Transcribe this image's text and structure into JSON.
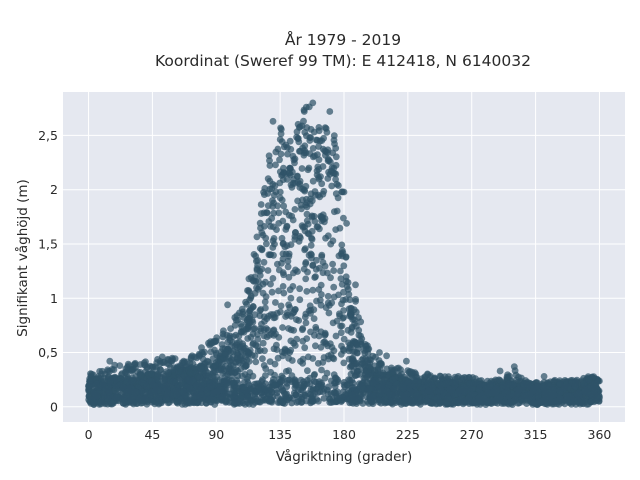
{
  "chart_data": {
    "type": "scatter",
    "title": "År 1979 - 2019",
    "subtitle": "Koordinat (Sweref 99 TM): E 412418, N 6140032",
    "xlabel": "Vågriktning (grader)",
    "ylabel": "Signifikant våghöjd (m)",
    "xlim": [
      -18,
      378
    ],
    "ylim": [
      -0.14,
      2.9
    ],
    "x_ticks": [
      0,
      45,
      90,
      135,
      180,
      225,
      270,
      315,
      360
    ],
    "x_tick_labels": [
      "0",
      "45",
      "90",
      "135",
      "180",
      "225",
      "270",
      "315",
      "360"
    ],
    "y_ticks": [
      0,
      0.5,
      1,
      1.5,
      2,
      2.5
    ],
    "y_tick_labels": [
      "0",
      "0,5",
      "1",
      "1,5",
      "2",
      "2,5"
    ],
    "grid": true,
    "legend": "none",
    "colors": {
      "marker": "#2f5368",
      "plot_bg": "#e5e8f0",
      "grid": "#ffffff",
      "text": "#2a2a2a"
    },
    "envelope": {
      "x": [
        0,
        10,
        20,
        30,
        40,
        50,
        60,
        70,
        80,
        90,
        100,
        110,
        115,
        120,
        125,
        130,
        135,
        140,
        145,
        150,
        155,
        160,
        165,
        170,
        175,
        180,
        185,
        190,
        195,
        200,
        210,
        220,
        230,
        240,
        250,
        260,
        270,
        280,
        290,
        300,
        310,
        320,
        330,
        340,
        350,
        360
      ],
      "y_max": [
        0.3,
        0.35,
        0.4,
        0.4,
        0.42,
        0.45,
        0.45,
        0.45,
        0.55,
        0.65,
        0.75,
        1.0,
        1.3,
        1.7,
        2.2,
        2.45,
        2.6,
        2.45,
        2.55,
        2.7,
        2.8,
        2.6,
        2.55,
        2.7,
        2.4,
        2.0,
        1.5,
        0.9,
        0.6,
        0.48,
        0.4,
        0.35,
        0.33,
        0.3,
        0.28,
        0.28,
        0.28,
        0.25,
        0.25,
        0.35,
        0.22,
        0.23,
        0.25,
        0.25,
        0.28,
        0.28
      ],
      "y_dense": [
        0.22,
        0.25,
        0.25,
        0.26,
        0.28,
        0.3,
        0.3,
        0.32,
        0.35,
        0.4,
        0.55,
        0.8,
        1.05,
        1.4,
        1.85,
        2.05,
        2.15,
        2.1,
        2.2,
        2.3,
        2.35,
        2.3,
        2.25,
        2.25,
        2.0,
        1.5,
        0.9,
        0.55,
        0.4,
        0.33,
        0.28,
        0.25,
        0.22,
        0.2,
        0.2,
        0.2,
        0.2,
        0.18,
        0.18,
        0.18,
        0.18,
        0.18,
        0.18,
        0.2,
        0.22,
        0.22
      ]
    },
    "outliers": [
      {
        "x": 15,
        "y": 0.42
      },
      {
        "x": 22,
        "y": 0.38
      },
      {
        "x": 52,
        "y": 0.46
      },
      {
        "x": 73,
        "y": 0.47
      },
      {
        "x": 86,
        "y": 0.6
      },
      {
        "x": 95,
        "y": 0.7
      },
      {
        "x": 98,
        "y": 0.94
      },
      {
        "x": 105,
        "y": 0.8
      },
      {
        "x": 205,
        "y": 0.5
      },
      {
        "x": 210,
        "y": 0.47
      },
      {
        "x": 224,
        "y": 0.42
      },
      {
        "x": 228,
        "y": 0.32
      },
      {
        "x": 290,
        "y": 0.33
      },
      {
        "x": 300,
        "y": 0.37
      },
      {
        "x": 321,
        "y": 0.28
      },
      {
        "x": 355,
        "y": 0.27
      },
      {
        "x": 130,
        "y": 2.63
      },
      {
        "x": 152,
        "y": 2.72
      },
      {
        "x": 158,
        "y": 2.8
      },
      {
        "x": 170,
        "y": 2.72
      }
    ]
  }
}
